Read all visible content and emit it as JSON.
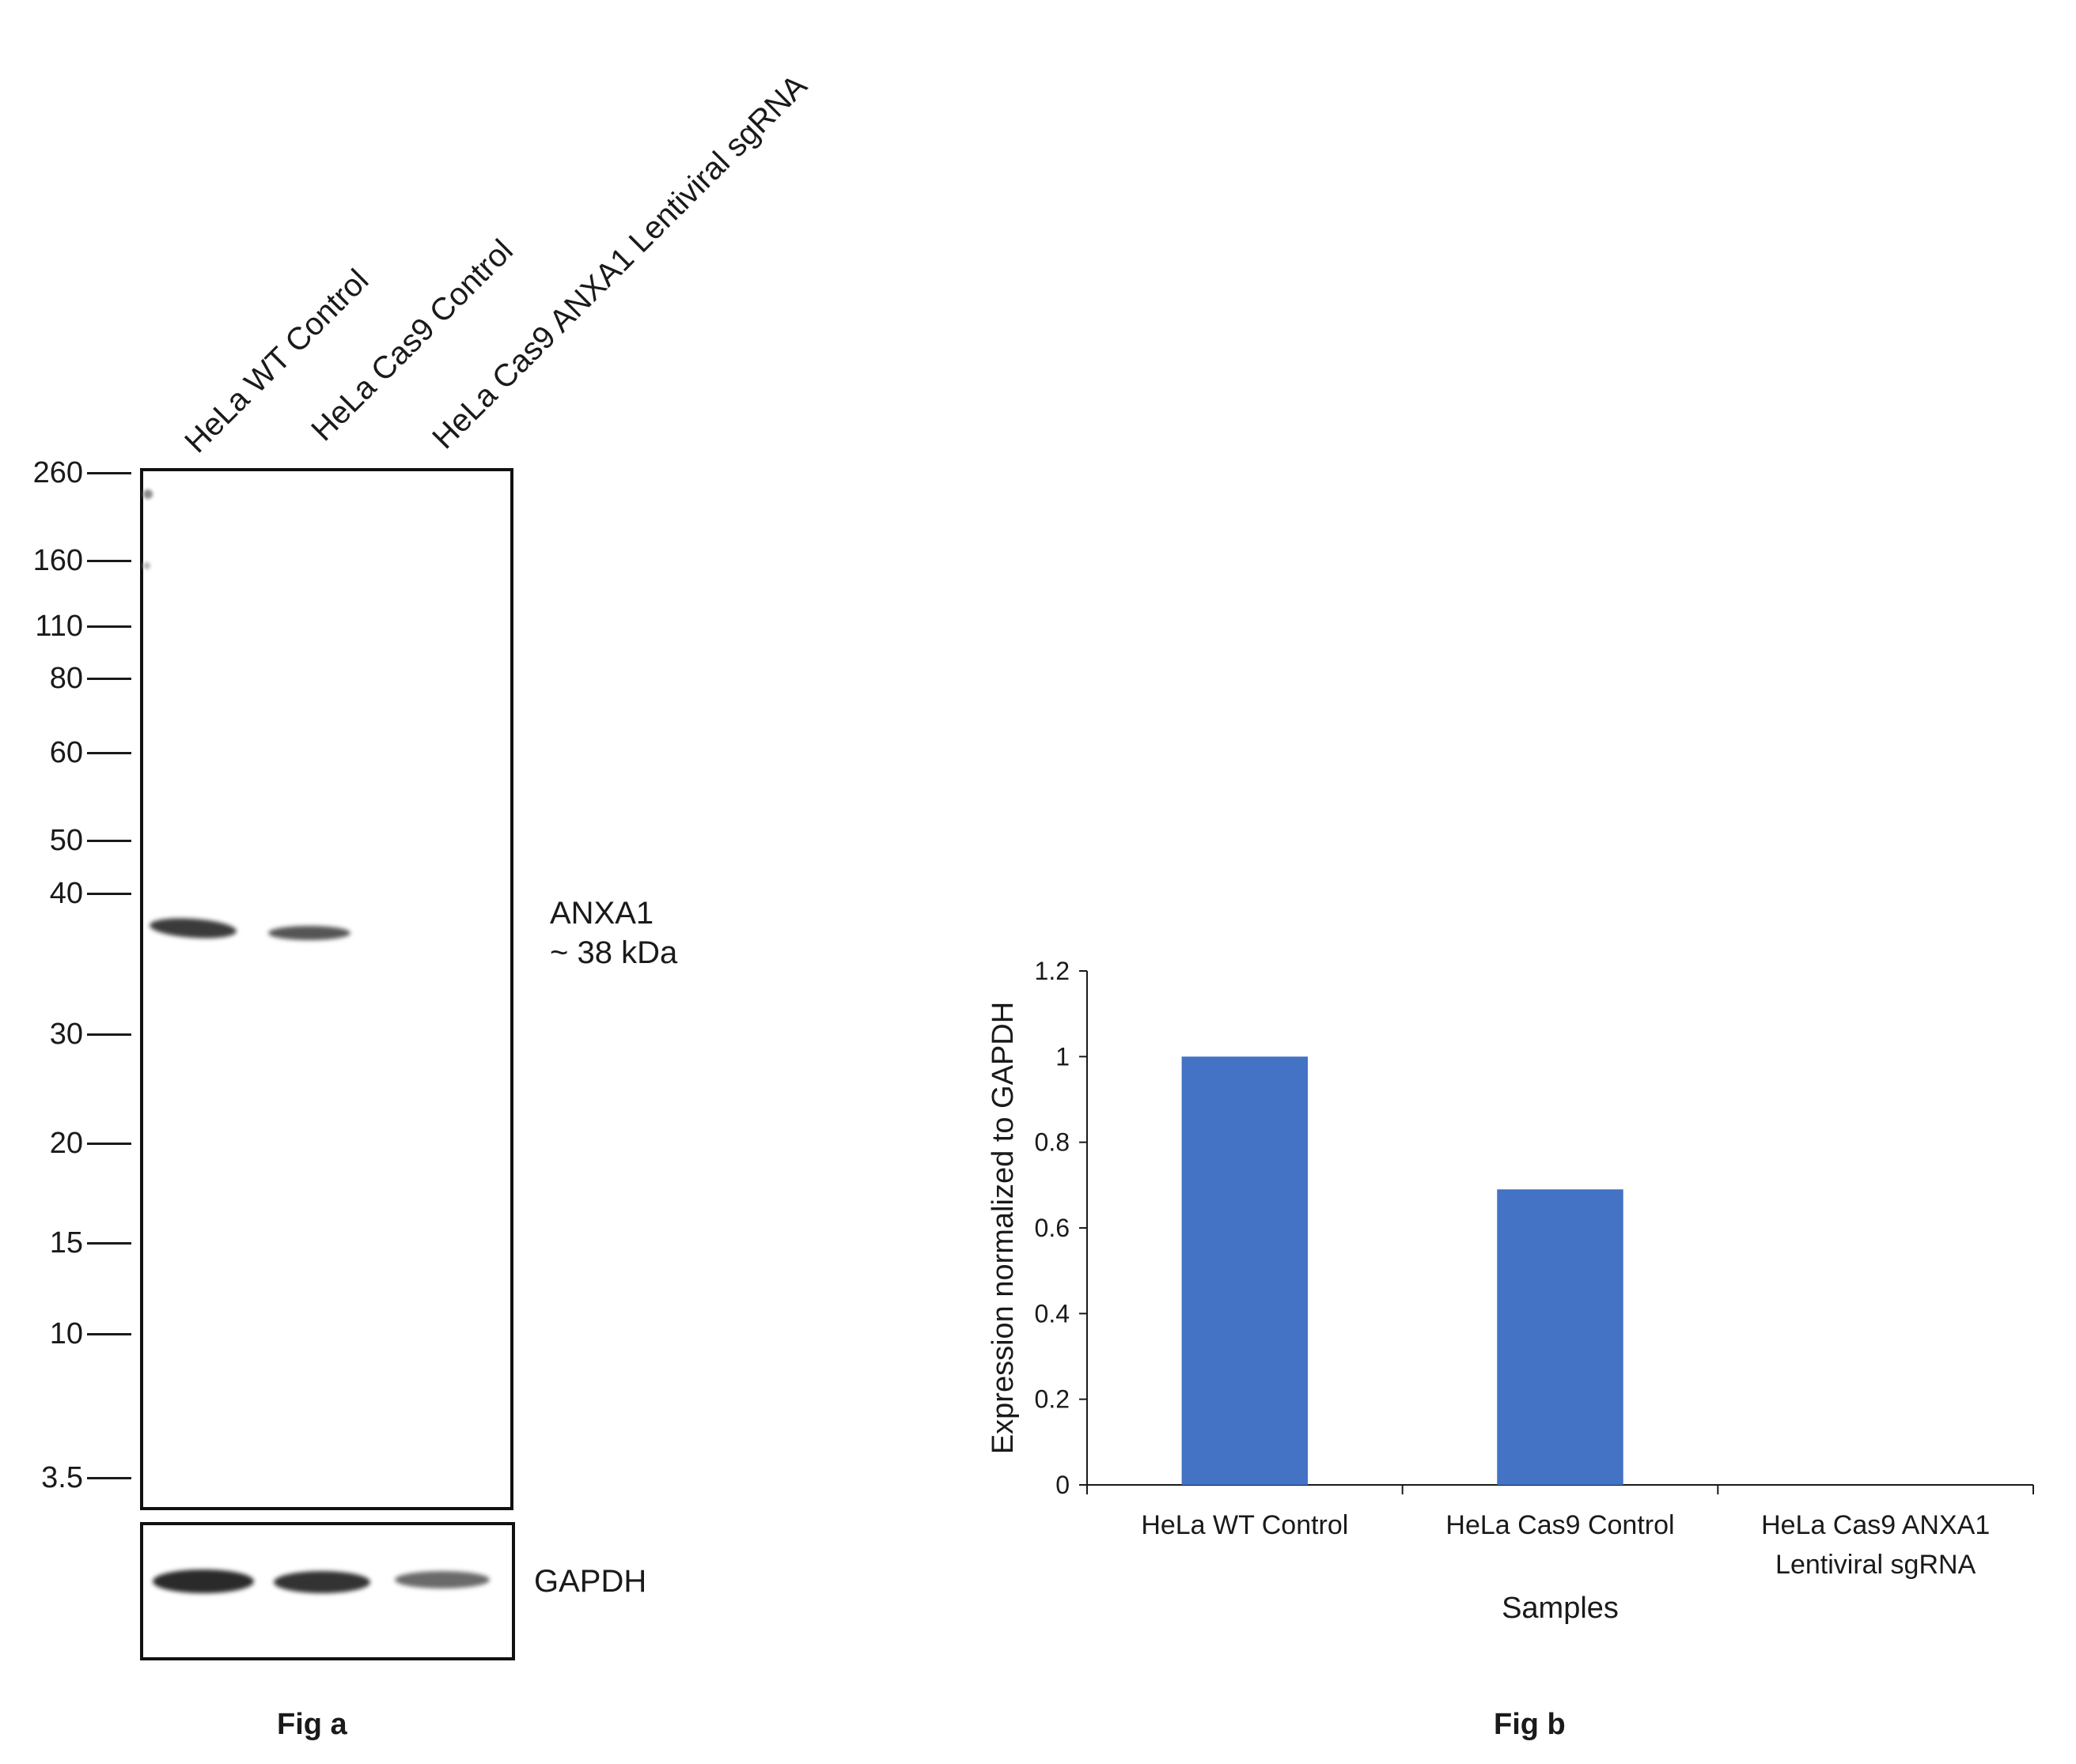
{
  "fig_a": {
    "caption": "Fig a",
    "lane_labels": [
      "HeLa WT Control",
      "HeLa Cas9 Control",
      "HeLa Cas9 ANXA1 Lentiviral sgRNA"
    ],
    "markers": [
      "260",
      "160",
      "110",
      "80",
      "60",
      "50",
      "40",
      "30",
      "20",
      "15",
      "10",
      "3.5"
    ],
    "target_label": "ANXA1",
    "target_size": "~ 38 kDa",
    "loading_control": "GAPDH"
  },
  "fig_b": {
    "caption": "Fig b"
  },
  "chart_data": {
    "type": "bar",
    "categories": [
      "HeLa WT Control",
      "HeLa Cas9 Control",
      "HeLa Cas9 ANXA1 Lentiviral sgRNA"
    ],
    "category_lines": [
      [
        "HeLa WT Control"
      ],
      [
        "HeLa Cas9 Control"
      ],
      [
        "HeLa Cas9 ANXA1",
        "Lentiviral sgRNA"
      ]
    ],
    "values": [
      1.0,
      0.69,
      0.0
    ],
    "xlabel": "Samples",
    "ylabel": "Expression normalized to GAPDH",
    "ylim": [
      0,
      1.2
    ],
    "yticks": [
      "0",
      "0.2",
      "0.4",
      "0.6",
      "0.8",
      "1",
      "1.2"
    ],
    "bar_color": "#4472C4",
    "grid": false,
    "legend": "none"
  }
}
